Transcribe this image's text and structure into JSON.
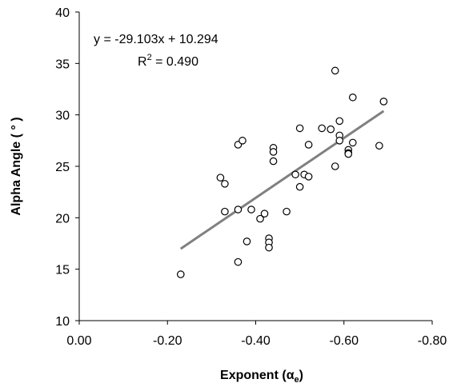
{
  "chart_data": {
    "type": "scatter",
    "xlabel": "Exponent (",
    "xlabel_symbol": "α",
    "xlabel_sub": "e",
    "xlabel_close": ")",
    "ylabel": "Alpha Angle ( ° )",
    "xlim": [
      0.0,
      -0.8
    ],
    "ylim": [
      10,
      40
    ],
    "x_ticks": [
      0.0,
      -0.2,
      -0.4,
      -0.6,
      -0.8
    ],
    "x_tick_labels": [
      "0.00",
      "-0.20",
      "-0.40",
      "-0.60",
      "-0.80"
    ],
    "y_ticks": [
      10,
      15,
      20,
      25,
      30,
      35,
      40
    ],
    "y_tick_labels": [
      "10",
      "15",
      "20",
      "25",
      "30",
      "35",
      "40"
    ],
    "grid": false,
    "marker": "open-circle",
    "trendline": {
      "slope": -29.103,
      "intercept": 10.294,
      "x_range": [
        -0.23,
        -0.69
      ],
      "color": "#808080"
    },
    "equation_text": "y = -29.103x + 10.294",
    "r2_text": {
      "prefix": "R",
      "superscript": "2",
      "suffix": " = 0.490"
    },
    "points": [
      {
        "x": -0.23,
        "y": 14.5
      },
      {
        "x": -0.32,
        "y": 23.9
      },
      {
        "x": -0.33,
        "y": 23.3
      },
      {
        "x": -0.33,
        "y": 20.6
      },
      {
        "x": -0.36,
        "y": 27.1
      },
      {
        "x": -0.36,
        "y": 20.8
      },
      {
        "x": -0.36,
        "y": 15.7
      },
      {
        "x": -0.37,
        "y": 27.5
      },
      {
        "x": -0.38,
        "y": 17.7
      },
      {
        "x": -0.39,
        "y": 20.8
      },
      {
        "x": -0.41,
        "y": 19.9
      },
      {
        "x": -0.42,
        "y": 20.4
      },
      {
        "x": -0.43,
        "y": 18.0
      },
      {
        "x": -0.43,
        "y": 17.6
      },
      {
        "x": -0.43,
        "y": 17.1
      },
      {
        "x": -0.44,
        "y": 26.8
      },
      {
        "x": -0.44,
        "y": 26.4
      },
      {
        "x": -0.44,
        "y": 25.5
      },
      {
        "x": -0.47,
        "y": 20.6
      },
      {
        "x": -0.49,
        "y": 24.2
      },
      {
        "x": -0.5,
        "y": 28.7
      },
      {
        "x": -0.5,
        "y": 23.0
      },
      {
        "x": -0.51,
        "y": 24.2
      },
      {
        "x": -0.52,
        "y": 27.1
      },
      {
        "x": -0.52,
        "y": 24.0
      },
      {
        "x": -0.55,
        "y": 28.7
      },
      {
        "x": -0.57,
        "y": 28.6
      },
      {
        "x": -0.58,
        "y": 34.3
      },
      {
        "x": -0.58,
        "y": 25.0
      },
      {
        "x": -0.59,
        "y": 29.4
      },
      {
        "x": -0.59,
        "y": 28.0
      },
      {
        "x": -0.59,
        "y": 27.5
      },
      {
        "x": -0.61,
        "y": 26.6
      },
      {
        "x": -0.61,
        "y": 26.3
      },
      {
        "x": -0.61,
        "y": 26.2
      },
      {
        "x": -0.62,
        "y": 31.7
      },
      {
        "x": -0.62,
        "y": 27.3
      },
      {
        "x": -0.68,
        "y": 27.0
      },
      {
        "x": -0.69,
        "y": 31.3
      }
    ]
  }
}
